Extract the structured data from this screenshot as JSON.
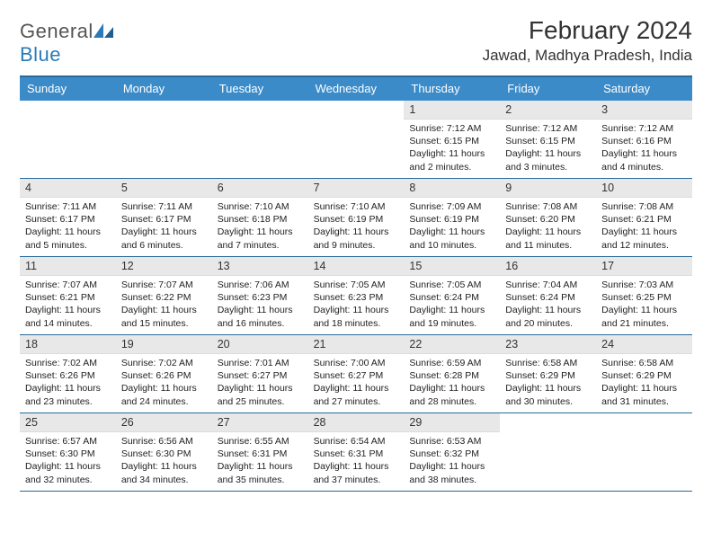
{
  "header": {
    "logo_general": "General",
    "logo_blue": "Blue",
    "month_title": "February 2024",
    "location": "Jawad, Madhya Pradesh, India"
  },
  "colors": {
    "header_bg": "#3b8bc9",
    "header_border_top": "#2a6a9a",
    "week_border": "#2a6a9a",
    "daynum_bg": "#e8e8e8",
    "logo_blue": "#2a7ab8"
  },
  "day_labels": [
    "Sunday",
    "Monday",
    "Tuesday",
    "Wednesday",
    "Thursday",
    "Friday",
    "Saturday"
  ],
  "weeks": [
    [
      {
        "blank": true
      },
      {
        "blank": true
      },
      {
        "blank": true
      },
      {
        "blank": true
      },
      {
        "day": "1",
        "sunrise": "Sunrise: 7:12 AM",
        "sunset": "Sunset: 6:15 PM",
        "daylight1": "Daylight: 11 hours",
        "daylight2": "and 2 minutes."
      },
      {
        "day": "2",
        "sunrise": "Sunrise: 7:12 AM",
        "sunset": "Sunset: 6:15 PM",
        "daylight1": "Daylight: 11 hours",
        "daylight2": "and 3 minutes."
      },
      {
        "day": "3",
        "sunrise": "Sunrise: 7:12 AM",
        "sunset": "Sunset: 6:16 PM",
        "daylight1": "Daylight: 11 hours",
        "daylight2": "and 4 minutes."
      }
    ],
    [
      {
        "day": "4",
        "sunrise": "Sunrise: 7:11 AM",
        "sunset": "Sunset: 6:17 PM",
        "daylight1": "Daylight: 11 hours",
        "daylight2": "and 5 minutes."
      },
      {
        "day": "5",
        "sunrise": "Sunrise: 7:11 AM",
        "sunset": "Sunset: 6:17 PM",
        "daylight1": "Daylight: 11 hours",
        "daylight2": "and 6 minutes."
      },
      {
        "day": "6",
        "sunrise": "Sunrise: 7:10 AM",
        "sunset": "Sunset: 6:18 PM",
        "daylight1": "Daylight: 11 hours",
        "daylight2": "and 7 minutes."
      },
      {
        "day": "7",
        "sunrise": "Sunrise: 7:10 AM",
        "sunset": "Sunset: 6:19 PM",
        "daylight1": "Daylight: 11 hours",
        "daylight2": "and 9 minutes."
      },
      {
        "day": "8",
        "sunrise": "Sunrise: 7:09 AM",
        "sunset": "Sunset: 6:19 PM",
        "daylight1": "Daylight: 11 hours",
        "daylight2": "and 10 minutes."
      },
      {
        "day": "9",
        "sunrise": "Sunrise: 7:08 AM",
        "sunset": "Sunset: 6:20 PM",
        "daylight1": "Daylight: 11 hours",
        "daylight2": "and 11 minutes."
      },
      {
        "day": "10",
        "sunrise": "Sunrise: 7:08 AM",
        "sunset": "Sunset: 6:21 PM",
        "daylight1": "Daylight: 11 hours",
        "daylight2": "and 12 minutes."
      }
    ],
    [
      {
        "day": "11",
        "sunrise": "Sunrise: 7:07 AM",
        "sunset": "Sunset: 6:21 PM",
        "daylight1": "Daylight: 11 hours",
        "daylight2": "and 14 minutes."
      },
      {
        "day": "12",
        "sunrise": "Sunrise: 7:07 AM",
        "sunset": "Sunset: 6:22 PM",
        "daylight1": "Daylight: 11 hours",
        "daylight2": "and 15 minutes."
      },
      {
        "day": "13",
        "sunrise": "Sunrise: 7:06 AM",
        "sunset": "Sunset: 6:23 PM",
        "daylight1": "Daylight: 11 hours",
        "daylight2": "and 16 minutes."
      },
      {
        "day": "14",
        "sunrise": "Sunrise: 7:05 AM",
        "sunset": "Sunset: 6:23 PM",
        "daylight1": "Daylight: 11 hours",
        "daylight2": "and 18 minutes."
      },
      {
        "day": "15",
        "sunrise": "Sunrise: 7:05 AM",
        "sunset": "Sunset: 6:24 PM",
        "daylight1": "Daylight: 11 hours",
        "daylight2": "and 19 minutes."
      },
      {
        "day": "16",
        "sunrise": "Sunrise: 7:04 AM",
        "sunset": "Sunset: 6:24 PM",
        "daylight1": "Daylight: 11 hours",
        "daylight2": "and 20 minutes."
      },
      {
        "day": "17",
        "sunrise": "Sunrise: 7:03 AM",
        "sunset": "Sunset: 6:25 PM",
        "daylight1": "Daylight: 11 hours",
        "daylight2": "and 21 minutes."
      }
    ],
    [
      {
        "day": "18",
        "sunrise": "Sunrise: 7:02 AM",
        "sunset": "Sunset: 6:26 PM",
        "daylight1": "Daylight: 11 hours",
        "daylight2": "and 23 minutes."
      },
      {
        "day": "19",
        "sunrise": "Sunrise: 7:02 AM",
        "sunset": "Sunset: 6:26 PM",
        "daylight1": "Daylight: 11 hours",
        "daylight2": "and 24 minutes."
      },
      {
        "day": "20",
        "sunrise": "Sunrise: 7:01 AM",
        "sunset": "Sunset: 6:27 PM",
        "daylight1": "Daylight: 11 hours",
        "daylight2": "and 25 minutes."
      },
      {
        "day": "21",
        "sunrise": "Sunrise: 7:00 AM",
        "sunset": "Sunset: 6:27 PM",
        "daylight1": "Daylight: 11 hours",
        "daylight2": "and 27 minutes."
      },
      {
        "day": "22",
        "sunrise": "Sunrise: 6:59 AM",
        "sunset": "Sunset: 6:28 PM",
        "daylight1": "Daylight: 11 hours",
        "daylight2": "and 28 minutes."
      },
      {
        "day": "23",
        "sunrise": "Sunrise: 6:58 AM",
        "sunset": "Sunset: 6:29 PM",
        "daylight1": "Daylight: 11 hours",
        "daylight2": "and 30 minutes."
      },
      {
        "day": "24",
        "sunrise": "Sunrise: 6:58 AM",
        "sunset": "Sunset: 6:29 PM",
        "daylight1": "Daylight: 11 hours",
        "daylight2": "and 31 minutes."
      }
    ],
    [
      {
        "day": "25",
        "sunrise": "Sunrise: 6:57 AM",
        "sunset": "Sunset: 6:30 PM",
        "daylight1": "Daylight: 11 hours",
        "daylight2": "and 32 minutes."
      },
      {
        "day": "26",
        "sunrise": "Sunrise: 6:56 AM",
        "sunset": "Sunset: 6:30 PM",
        "daylight1": "Daylight: 11 hours",
        "daylight2": "and 34 minutes."
      },
      {
        "day": "27",
        "sunrise": "Sunrise: 6:55 AM",
        "sunset": "Sunset: 6:31 PM",
        "daylight1": "Daylight: 11 hours",
        "daylight2": "and 35 minutes."
      },
      {
        "day": "28",
        "sunrise": "Sunrise: 6:54 AM",
        "sunset": "Sunset: 6:31 PM",
        "daylight1": "Daylight: 11 hours",
        "daylight2": "and 37 minutes."
      },
      {
        "day": "29",
        "sunrise": "Sunrise: 6:53 AM",
        "sunset": "Sunset: 6:32 PM",
        "daylight1": "Daylight: 11 hours",
        "daylight2": "and 38 minutes."
      },
      {
        "blank": true
      },
      {
        "blank": true
      }
    ]
  ]
}
